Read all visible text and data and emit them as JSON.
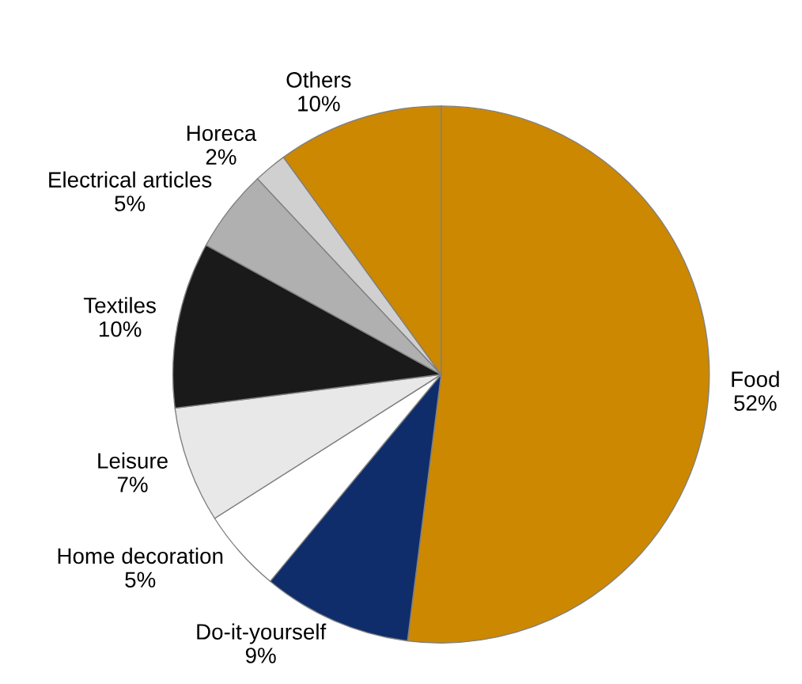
{
  "chart_data": {
    "type": "pie",
    "categories": [
      "Food",
      "Do-it-yourself",
      "Home decoration",
      "Leisure",
      "Textiles",
      "Electrical articles",
      "Horeca",
      "Others"
    ],
    "values": [
      52,
      9,
      5,
      7,
      10,
      5,
      2,
      10
    ],
    "value_labels": [
      "52%",
      "9%",
      "5%",
      "7%",
      "10%",
      "5%",
      "2%",
      "10%"
    ],
    "colors": [
      "#cc8800",
      "#0f2d6b",
      "#ffffff",
      "#e8e8e8",
      "#1a1a1a",
      "#b0b0b0",
      "#d0d0d0",
      "#cc8800"
    ]
  }
}
